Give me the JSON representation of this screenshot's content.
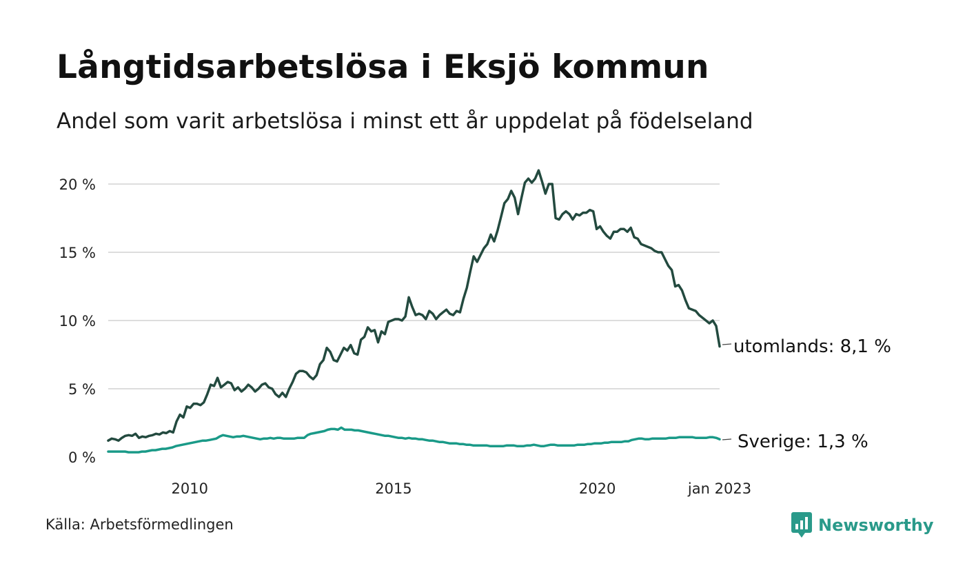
{
  "title": "Långtidsarbetslösa i Eksjö kommun",
  "subtitle": "Andel som varit arbetslösa i minst ett år uppdelat på födelseland",
  "source": "Källa: Arbetsförmedlingen",
  "brand": {
    "name": "Newsworthy",
    "icon": "newsworthy-logo-icon",
    "color": "#2a9a8a"
  },
  "colors": {
    "utomlands": "#234a3f",
    "sverige": "#1a9a88",
    "grid": "#dddddd"
  },
  "chart_data": {
    "type": "line",
    "title": "Långtidsarbetslösa i Eksjö kommun",
    "subtitle": "Andel som varit arbetslösa i minst ett år uppdelat på födelseland",
    "xlabel": "",
    "ylabel": "",
    "x_start": "2008-01",
    "x_end": "2023-01",
    "x_step": "month",
    "xlim": [
      "2008-01",
      "2023-01"
    ],
    "ylim": [
      0,
      21
    ],
    "y_ticks": [
      0,
      5,
      10,
      15,
      20
    ],
    "y_tick_labels": [
      "0 %",
      "5 %",
      "10 %",
      "15 %",
      "20 %"
    ],
    "x_ticks": [
      "2010-01",
      "2015-01",
      "2020-01",
      "2023-01"
    ],
    "x_tick_labels": [
      "2010",
      "2015",
      "2020",
      "jan 2023"
    ],
    "grid": true,
    "legend": "direct labels at line ends",
    "series": [
      {
        "name": "utomlands",
        "end_label": "utomlands: 8,1 %",
        "color": "#234a3f",
        "values": [
          1.2,
          1.35,
          1.3,
          1.2,
          1.4,
          1.55,
          1.6,
          1.55,
          1.7,
          1.4,
          1.5,
          1.45,
          1.55,
          1.6,
          1.7,
          1.65,
          1.8,
          1.75,
          1.9,
          1.8,
          2.6,
          3.1,
          2.9,
          3.7,
          3.6,
          3.9,
          3.9,
          3.8,
          4.0,
          4.6,
          5.3,
          5.2,
          5.8,
          5.1,
          5.3,
          5.5,
          5.4,
          4.9,
          5.1,
          4.8,
          5.0,
          5.3,
          5.1,
          4.8,
          5.0,
          5.3,
          5.4,
          5.1,
          5.0,
          4.6,
          4.4,
          4.7,
          4.4,
          5.0,
          5.5,
          6.1,
          6.3,
          6.3,
          6.2,
          5.9,
          5.7,
          6.0,
          6.8,
          7.1,
          8.0,
          7.7,
          7.1,
          7.0,
          7.5,
          8.0,
          7.8,
          8.2,
          7.6,
          7.5,
          8.6,
          8.8,
          9.5,
          9.2,
          9.3,
          8.4,
          9.2,
          9.0,
          9.9,
          10.0,
          10.1,
          10.1,
          10.0,
          10.3,
          11.7,
          11.0,
          10.4,
          10.5,
          10.4,
          10.1,
          10.7,
          10.5,
          10.1,
          10.4,
          10.6,
          10.8,
          10.5,
          10.4,
          10.7,
          10.6,
          11.6,
          12.4,
          13.6,
          14.7,
          14.3,
          14.8,
          15.3,
          15.6,
          16.3,
          15.8,
          16.6,
          17.6,
          18.6,
          18.9,
          19.5,
          19.0,
          17.8,
          19.0,
          20.1,
          20.4,
          20.1,
          20.4,
          21.0,
          20.2,
          19.3,
          20.0,
          20.0,
          17.5,
          17.4,
          17.8,
          18.0,
          17.8,
          17.4,
          17.8,
          17.7,
          17.9,
          17.9,
          18.1,
          18.0,
          16.7,
          16.9,
          16.5,
          16.2,
          16.0,
          16.5,
          16.5,
          16.7,
          16.7,
          16.5,
          16.8,
          16.1,
          16.0,
          15.6,
          15.5,
          15.4,
          15.3,
          15.1,
          15.0,
          15.0,
          14.5,
          14.0,
          13.7,
          12.5,
          12.6,
          12.2,
          11.5,
          10.9,
          10.8,
          10.7,
          10.4,
          10.2,
          10.0,
          9.8,
          10.0,
          9.6,
          8.1
        ]
      },
      {
        "name": "Sverige",
        "end_label": "Sverige: 1,3 %",
        "color": "#1a9a88",
        "values": [
          0.4,
          0.4,
          0.4,
          0.4,
          0.4,
          0.4,
          0.35,
          0.35,
          0.35,
          0.35,
          0.4,
          0.4,
          0.45,
          0.5,
          0.5,
          0.55,
          0.6,
          0.6,
          0.65,
          0.7,
          0.8,
          0.85,
          0.9,
          0.95,
          1.0,
          1.05,
          1.1,
          1.15,
          1.2,
          1.2,
          1.25,
          1.3,
          1.35,
          1.5,
          1.6,
          1.55,
          1.5,
          1.45,
          1.5,
          1.5,
          1.55,
          1.5,
          1.45,
          1.4,
          1.35,
          1.3,
          1.35,
          1.35,
          1.4,
          1.35,
          1.4,
          1.4,
          1.35,
          1.35,
          1.35,
          1.35,
          1.4,
          1.4,
          1.4,
          1.6,
          1.7,
          1.75,
          1.8,
          1.85,
          1.9,
          2.0,
          2.05,
          2.05,
          2.0,
          2.15,
          2.0,
          2.0,
          2.0,
          1.95,
          1.95,
          1.9,
          1.85,
          1.8,
          1.75,
          1.7,
          1.65,
          1.6,
          1.55,
          1.55,
          1.5,
          1.45,
          1.4,
          1.4,
          1.35,
          1.4,
          1.35,
          1.35,
          1.3,
          1.3,
          1.25,
          1.2,
          1.2,
          1.15,
          1.1,
          1.1,
          1.05,
          1.0,
          1.0,
          1.0,
          0.95,
          0.95,
          0.9,
          0.9,
          0.85,
          0.85,
          0.85,
          0.85,
          0.85,
          0.8,
          0.8,
          0.8,
          0.8,
          0.8,
          0.85,
          0.85,
          0.85,
          0.8,
          0.8,
          0.8,
          0.85,
          0.85,
          0.9,
          0.85,
          0.8,
          0.8,
          0.85,
          0.9,
          0.9,
          0.85,
          0.85,
          0.85,
          0.85,
          0.85,
          0.85,
          0.9,
          0.9,
          0.9,
          0.95,
          0.95,
          1.0,
          1.0,
          1.0,
          1.05,
          1.05,
          1.1,
          1.1,
          1.1,
          1.1,
          1.15,
          1.15,
          1.25,
          1.3,
          1.35,
          1.35,
          1.3,
          1.3,
          1.35,
          1.35,
          1.35,
          1.35,
          1.35,
          1.4,
          1.4,
          1.4,
          1.45,
          1.45,
          1.45,
          1.45,
          1.45,
          1.4,
          1.4,
          1.4,
          1.4,
          1.45,
          1.45,
          1.4,
          1.3
        ]
      }
    ]
  }
}
